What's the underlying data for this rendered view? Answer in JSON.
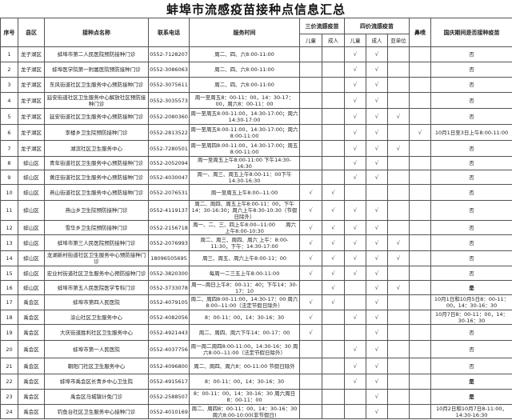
{
  "title": "蚌埠市流感疫苗接种点信息汇总",
  "headers": {
    "no": "序号",
    "district": "县区",
    "site": "接种点名称",
    "phone": "联系电话",
    "hours": "服务时间",
    "trivalent": "三价流感疫苗",
    "quadrivalent": "四价流感疫苗",
    "nasal": "鼻喷",
    "national_day": "国庆期间是否接种疫苗",
    "child": "儿童",
    "adult": "成人",
    "subunit": "亚单位"
  },
  "check_mark": "√",
  "rows": [
    {
      "no": "1",
      "district": "龙子湖区",
      "site": "蚌埠市第二人民医院预防接种门诊",
      "phone": "0552-7128207",
      "hours": "周二、四、六8:00-11:00",
      "t3c": "",
      "t3a": "",
      "t4c": "√",
      "t4a": "√",
      "sub": "",
      "nasal": "",
      "nd": "否"
    },
    {
      "no": "2",
      "district": "龙子湖区",
      "site": "蚌埠医学院第一附属医院预防接种门诊",
      "phone": "0552-3086063",
      "hours": "周二、四、六8:00-11:00",
      "t3c": "",
      "t3a": "",
      "t4c": "√",
      "t4a": "√",
      "sub": "",
      "nasal": "",
      "nd": "否"
    },
    {
      "no": "3",
      "district": "龙子湖区",
      "site": "东风街道社区卫生服务中心预防接种门诊",
      "phone": "0552-3075611",
      "hours": "周二、四、六8:00-11:00",
      "t3c": "",
      "t3a": "",
      "t4c": "√",
      "t4a": "√",
      "sub": "",
      "nasal": "",
      "nd": "否"
    },
    {
      "no": "4",
      "district": "龙子湖区",
      "site": "延安街道社区卫生服务中心解放社区预防接种门诊",
      "phone": "0552-3035573",
      "hours": "周一至周五8：00-11：00，14：30-17：00，周六8：00-11：00",
      "t3c": "",
      "t3a": "",
      "t4c": "√",
      "t4a": "√",
      "sub": "",
      "nasal": "",
      "nd": "否"
    },
    {
      "no": "5",
      "district": "龙子湖区",
      "site": "延安街道社区卫生服务中心预防接种门诊",
      "phone": "0552-2080360",
      "hours": "周一至周五8:00-11:00，14:30-17:00；周六14:30-17:00",
      "t3c": "",
      "t3a": "",
      "t4c": "√",
      "t4a": "√",
      "sub": "√",
      "nasal": "",
      "nd": "否"
    },
    {
      "no": "6",
      "district": "龙子湖区",
      "site": "李楼乡卫生院预防接种门诊",
      "phone": "0552-2813522",
      "hours": "周一至周五8:00-11:00，14:30-17:00；周六8:00-11:00",
      "t3c": "",
      "t3a": "",
      "t4c": "√",
      "t4a": "√",
      "sub": "",
      "nasal": "√",
      "nd": "10月1日至3日上午8:00-11:00"
    },
    {
      "no": "7",
      "district": "龙子湖区",
      "site": "湖滨社区卫生服务中心",
      "phone": "0552-7280501",
      "hours": "周一至周四8:00-11:00，14:30-17:00；周五8:00-11:00",
      "t3c": "",
      "t3a": "",
      "t4c": "√",
      "t4a": "√",
      "sub": "√",
      "nasal": "",
      "nd": "否"
    },
    {
      "no": "8",
      "district": "蚌山区",
      "site": "青年街道社区卫生服务中心预防接种门诊",
      "phone": "0552-2052094",
      "hours": "周一至周五上午8:00-11:00 下午14:30-16:30",
      "t3c": "",
      "t3a": "",
      "t4c": "√",
      "t4a": "√",
      "sub": "",
      "nasal": "",
      "nd": "否"
    },
    {
      "no": "9",
      "district": "蚌山区",
      "site": "黄庄街道社区卫生服务中心预防接种门诊",
      "phone": "0552-4030047",
      "hours": "周一、周三、周五上午8:00-11：00下午14:30-16:30",
      "t3c": "",
      "t3a": "",
      "t4c": "√",
      "t4a": "√",
      "sub": "",
      "nasal": "",
      "nd": "否"
    },
    {
      "no": "10",
      "district": "蚌山区",
      "site": "燕山街道社区卫生服务中心预防接种门诊",
      "phone": "0552-2076531",
      "hours": "周一至周五上午8:00--11:00",
      "t3c": "√",
      "t3a": "√",
      "t4c": "",
      "t4a": "",
      "sub": "",
      "nasal": "",
      "nd": "否"
    },
    {
      "no": "11",
      "district": "蚌山区",
      "site": "燕山乡卫生院预防接种门诊",
      "phone": "0552-4119137",
      "hours": "周二、周四、周五上午8:00-11：00，下午14：30-16:30；周六上午8:30-10:30（节假日除外）",
      "t3c": "√",
      "t3a": "√",
      "t4c": "√",
      "t4a": "√",
      "sub": "",
      "nasal": "",
      "nd": "否"
    },
    {
      "no": "12",
      "district": "蚌山区",
      "site": "雪华乡卫生院预防接种门诊",
      "phone": "0552-2156718",
      "hours": "周一、二、三、四上午8:00--11:00　　周六上午8:00-10:30",
      "t3c": "√",
      "t3a": "√",
      "t4c": "√",
      "t4a": "√",
      "sub": "",
      "nasal": "",
      "nd": "否"
    },
    {
      "no": "13",
      "district": "蚌山区",
      "site": "蚌埠市第三人民医院预防接种门诊",
      "phone": "0552-2076993",
      "hours": "周二、周三、周四、周六 上午：8:00-11:30，下午：14:30-17:00",
      "t3c": "√",
      "t3a": "√",
      "t4c": "√",
      "t4a": "√",
      "sub": "√",
      "nasal": "",
      "nd": "否"
    },
    {
      "no": "14",
      "district": "蚌山区",
      "site": "龙湖新村街道社区卫生服务中心预防接种门诊",
      "phone": "18096505695",
      "hours": "周三、周五、周六上午8:00-11：00",
      "t3c": "√",
      "t3a": "√",
      "t4c": "√",
      "t4a": "√",
      "sub": "√",
      "nasal": "",
      "nd": "否"
    },
    {
      "no": "15",
      "district": "蚌山区",
      "site": "宏业村街道社区卫生服务中心预防接种门诊",
      "phone": "0552-3820300",
      "hours": "每周一二三五上午8:00-11:00",
      "t3c": "√",
      "t3a": "√",
      "t4c": "√",
      "t4a": "√",
      "sub": "",
      "nasal": "",
      "nd": "否"
    },
    {
      "no": "16",
      "district": "蚌山区",
      "site": "蚌埠市第五人民医院医学专科门诊",
      "phone": "0552-3733078",
      "hours": "周一--周日上午8：00-11：40；下午14：30-17：10",
      "t3c": "",
      "t3a": "√",
      "t4c": "",
      "t4a": "√",
      "sub": "√",
      "nasal": "",
      "nd": "是"
    },
    {
      "no": "17",
      "district": "禹会区",
      "site": "蚌埠市第四人民医院",
      "phone": "0552-4079105",
      "hours": "周二、周四8:00-11:00，14:30-17：00 周六8:00--11:00（法定节假日除外）",
      "t3c": "√",
      "t3a": "√",
      "t4c": "",
      "t4a": "√",
      "sub": "",
      "nasal": "",
      "nd": "10月1日和10月5日8：00-11：00，14：30-16：30"
    },
    {
      "no": "18",
      "district": "禹会区",
      "site": "涂山社区卫生服务中心",
      "phone": "0552-4082056",
      "hours": "8：00-11：00，14：30-16：30",
      "t3c": "√",
      "t3a": "",
      "t4c": "√",
      "t4a": "√",
      "sub": "",
      "nasal": "",
      "nd": "10月7日8：00-11：00，14：30-16：30"
    },
    {
      "no": "19",
      "district": "禹会区",
      "site": "大庆街道胜利社区卫生服务中心",
      "phone": "0552-4921443",
      "hours": "周二、周四、周六下午14：00-17：00",
      "t3c": "√",
      "t3a": "",
      "t4c": "",
      "t4a": "√",
      "sub": "",
      "nasal": "",
      "nd": "否"
    },
    {
      "no": "20",
      "district": "禹会区",
      "site": "蚌埠市第一人民医院",
      "phone": "0552-4037756",
      "hours": "周一周二周四8:00-11:00，14:30-16：30 周六8:00--11:00（法定节假日除外）",
      "t3c": "",
      "t3a": "",
      "t4c": "√",
      "t4a": "√",
      "sub": "",
      "nasal": "",
      "nd": "否"
    },
    {
      "no": "21",
      "district": "禹会区",
      "site": "朝阳门社区卫生服务中心",
      "phone": "0552-4096800",
      "hours": "周二、周四、周六8：00-11:00 节假日除外",
      "t3c": "",
      "t3a": "",
      "t4c": "√",
      "t4a": "√",
      "sub": "",
      "nasal": "",
      "nd": "否"
    },
    {
      "no": "22",
      "district": "禹会区",
      "site": "蚌埠市禹会区长青乡中心卫生院",
      "phone": "0552-4915617",
      "hours": "8：00-11：00，14：30-16：30",
      "t3c": "",
      "t3a": "",
      "t4c": "√",
      "t4a": "√",
      "sub": "",
      "nasal": "",
      "nd": "是"
    },
    {
      "no": "23",
      "district": "禹会区",
      "site": "禹会区马城镇计免门诊",
      "phone": "0552-2588507",
      "hours": "8：00-11：00，14：30-16：30 周六周日8：00-11：00",
      "t3c": "",
      "t3a": "",
      "t4c": "",
      "t4a": "√",
      "sub": "",
      "nasal": "",
      "nd": "是"
    },
    {
      "no": "24",
      "district": "禹会区",
      "site": "钓鱼台社区卫生服务中心接种门诊",
      "phone": "0552-4010169",
      "hours": "周二、周四8：00-11：00，14：30-16：30 周六8:00-10:00(非节假日)",
      "t3c": "",
      "t3a": "",
      "t4c": "",
      "t4a": "√",
      "sub": "",
      "nasal": "",
      "nd": "10月2日和10月7日8-11:00，14:30-16:30"
    }
  ]
}
